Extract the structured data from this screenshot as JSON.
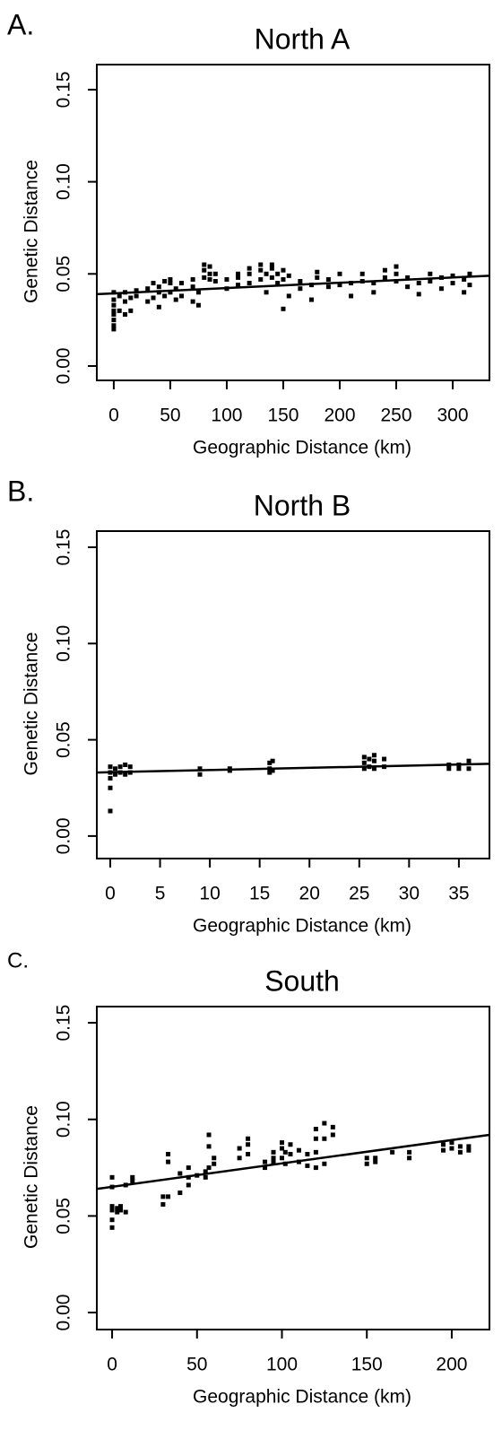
{
  "chart_data": [
    {
      "type": "scatter",
      "panel_label": "A.",
      "title": "North A",
      "xlabel": "Geographic Distance (km)",
      "ylabel": "Genetic Distance",
      "color": "#000000",
      "xlim": [
        -15,
        332.5
      ],
      "ylim": [
        -0.0078,
        0.1636
      ],
      "xticks": [
        0,
        50,
        100,
        150,
        200,
        250,
        300
      ],
      "yticks": [
        {
          "value": 0,
          "label": "0.00"
        },
        0.05,
        {
          "value": 0.1,
          "label": "0.10"
        },
        0.15
      ],
      "x": [
        0,
        0,
        0,
        0,
        0,
        0,
        0,
        0,
        5,
        5,
        10,
        10,
        10,
        15,
        15,
        20,
        20,
        30,
        30,
        35,
        35,
        40,
        40,
        40,
        45,
        45,
        50,
        50,
        50,
        55,
        55,
        60,
        60,
        70,
        70,
        70,
        75,
        75,
        80,
        80,
        80,
        85,
        85,
        85,
        90,
        90,
        100,
        100,
        110,
        110,
        110,
        120,
        120,
        120,
        130,
        130,
        130,
        135,
        135,
        140,
        140,
        140,
        145,
        145,
        150,
        150,
        150,
        155,
        155,
        165,
        165,
        175,
        175,
        180,
        180,
        190,
        190,
        200,
        200,
        210,
        210,
        220,
        220,
        230,
        230,
        240,
        240,
        250,
        250,
        250,
        260,
        260,
        270,
        270,
        280,
        280,
        290,
        290,
        300,
        300,
        310,
        310,
        315,
        315
      ],
      "y": [
        0.02,
        0.022,
        0.025,
        0.028,
        0.03,
        0.033,
        0.036,
        0.04,
        0.03,
        0.038,
        0.028,
        0.035,
        0.04,
        0.03,
        0.037,
        0.038,
        0.041,
        0.035,
        0.042,
        0.037,
        0.045,
        0.032,
        0.04,
        0.043,
        0.038,
        0.046,
        0.04,
        0.045,
        0.047,
        0.036,
        0.042,
        0.038,
        0.045,
        0.035,
        0.043,
        0.047,
        0.033,
        0.04,
        0.048,
        0.052,
        0.055,
        0.047,
        0.05,
        0.054,
        0.046,
        0.05,
        0.042,
        0.047,
        0.044,
        0.048,
        0.05,
        0.045,
        0.05,
        0.053,
        0.047,
        0.052,
        0.055,
        0.04,
        0.05,
        0.048,
        0.053,
        0.055,
        0.045,
        0.05,
        0.031,
        0.047,
        0.052,
        0.038,
        0.049,
        0.042,
        0.046,
        0.036,
        0.044,
        0.048,
        0.051,
        0.043,
        0.047,
        0.044,
        0.05,
        0.038,
        0.045,
        0.046,
        0.05,
        0.04,
        0.045,
        0.048,
        0.052,
        0.046,
        0.05,
        0.054,
        0.043,
        0.048,
        0.039,
        0.045,
        0.046,
        0.05,
        0.042,
        0.048,
        0.045,
        0.049,
        0.04,
        0.047,
        0.044,
        0.05
      ],
      "trend": {
        "x": [
          -15,
          332.5
        ],
        "y": [
          0.039,
          0.049
        ]
      }
    },
    {
      "type": "scatter",
      "panel_label": "B.",
      "title": "North B",
      "xlabel": "Geographic Distance (km)",
      "ylabel": "Genetic Distance",
      "color": "#000000",
      "xlim": [
        -1.35,
        38.07
      ],
      "ylim": [
        -0.0117,
        0.1584
      ],
      "xticks": [
        0,
        5,
        10,
        15,
        20,
        25,
        30,
        35
      ],
      "yticks": [
        {
          "value": 0,
          "label": "0.00"
        },
        0.05,
        {
          "value": 0.1,
          "label": "0.10"
        },
        0.15
      ],
      "x": [
        0,
        0,
        0,
        0,
        0,
        0.5,
        0.5,
        1,
        1,
        1.5,
        1.5,
        2,
        2,
        9,
        9,
        12,
        12,
        16,
        16,
        16,
        16.3,
        16.3,
        25.5,
        25.5,
        25.5,
        26,
        26,
        26.5,
        26.5,
        26.5,
        27.5,
        27.5,
        34,
        34,
        35,
        35,
        36,
        36
      ],
      "y": [
        0.013,
        0.025,
        0.03,
        0.033,
        0.036,
        0.032,
        0.035,
        0.033,
        0.036,
        0.032,
        0.037,
        0.033,
        0.036,
        0.032,
        0.035,
        0.034,
        0.035,
        0.033,
        0.035,
        0.038,
        0.034,
        0.039,
        0.035,
        0.038,
        0.041,
        0.036,
        0.04,
        0.035,
        0.039,
        0.042,
        0.036,
        0.04,
        0.035,
        0.037,
        0.035,
        0.037,
        0.035,
        0.039
      ],
      "trend": {
        "x": [
          -1.35,
          38.07
        ],
        "y": [
          0.033,
          0.0375
        ]
      }
    },
    {
      "type": "scatter",
      "panel_label": "C.",
      "title": "South",
      "xlabel": "Geographic Distance (km)",
      "ylabel": "Genetic Distance",
      "color": "#000000",
      "xlim": [
        -9,
        222.2
      ],
      "ylim": [
        -0.0088,
        0.1584
      ],
      "xticks": [
        0,
        50,
        100,
        150,
        200
      ],
      "yticks": [
        {
          "value": 0,
          "label": "0.00"
        },
        0.05,
        {
          "value": 0.1,
          "label": "0.10"
        },
        0.15
      ],
      "x": [
        0,
        0,
        0,
        0,
        0,
        0,
        3,
        3,
        5,
        5,
        8,
        8,
        12,
        12,
        30,
        30,
        33,
        33,
        33,
        40,
        40,
        45,
        45,
        45,
        50,
        55,
        55,
        57,
        57,
        57,
        60,
        60,
        75,
        75,
        80,
        80,
        80,
        90,
        90,
        95,
        95,
        95,
        100,
        100,
        100,
        102,
        102,
        105,
        105,
        110,
        110,
        115,
        115,
        120,
        120,
        120,
        120,
        125,
        125,
        125,
        130,
        130,
        150,
        150,
        155,
        155,
        165,
        175,
        175,
        195,
        195,
        200,
        200,
        205,
        205,
        210,
        210
      ],
      "y": [
        0.044,
        0.048,
        0.053,
        0.055,
        0.065,
        0.07,
        0.052,
        0.054,
        0.053,
        0.055,
        0.052,
        0.066,
        0.068,
        0.07,
        0.056,
        0.06,
        0.06,
        0.078,
        0.082,
        0.062,
        0.072,
        0.066,
        0.07,
        0.075,
        0.071,
        0.07,
        0.073,
        0.075,
        0.086,
        0.092,
        0.077,
        0.08,
        0.08,
        0.085,
        0.082,
        0.087,
        0.09,
        0.075,
        0.078,
        0.078,
        0.08,
        0.083,
        0.08,
        0.085,
        0.088,
        0.077,
        0.083,
        0.082,
        0.087,
        0.078,
        0.084,
        0.076,
        0.082,
        0.075,
        0.083,
        0.09,
        0.095,
        0.077,
        0.09,
        0.098,
        0.092,
        0.096,
        0.077,
        0.08,
        0.078,
        0.08,
        0.083,
        0.08,
        0.083,
        0.084,
        0.087,
        0.085,
        0.088,
        0.083,
        0.086,
        0.084,
        0.086
      ],
      "trend": {
        "x": [
          -9,
          222.2
        ],
        "y": [
          0.064,
          0.092
        ]
      }
    }
  ]
}
